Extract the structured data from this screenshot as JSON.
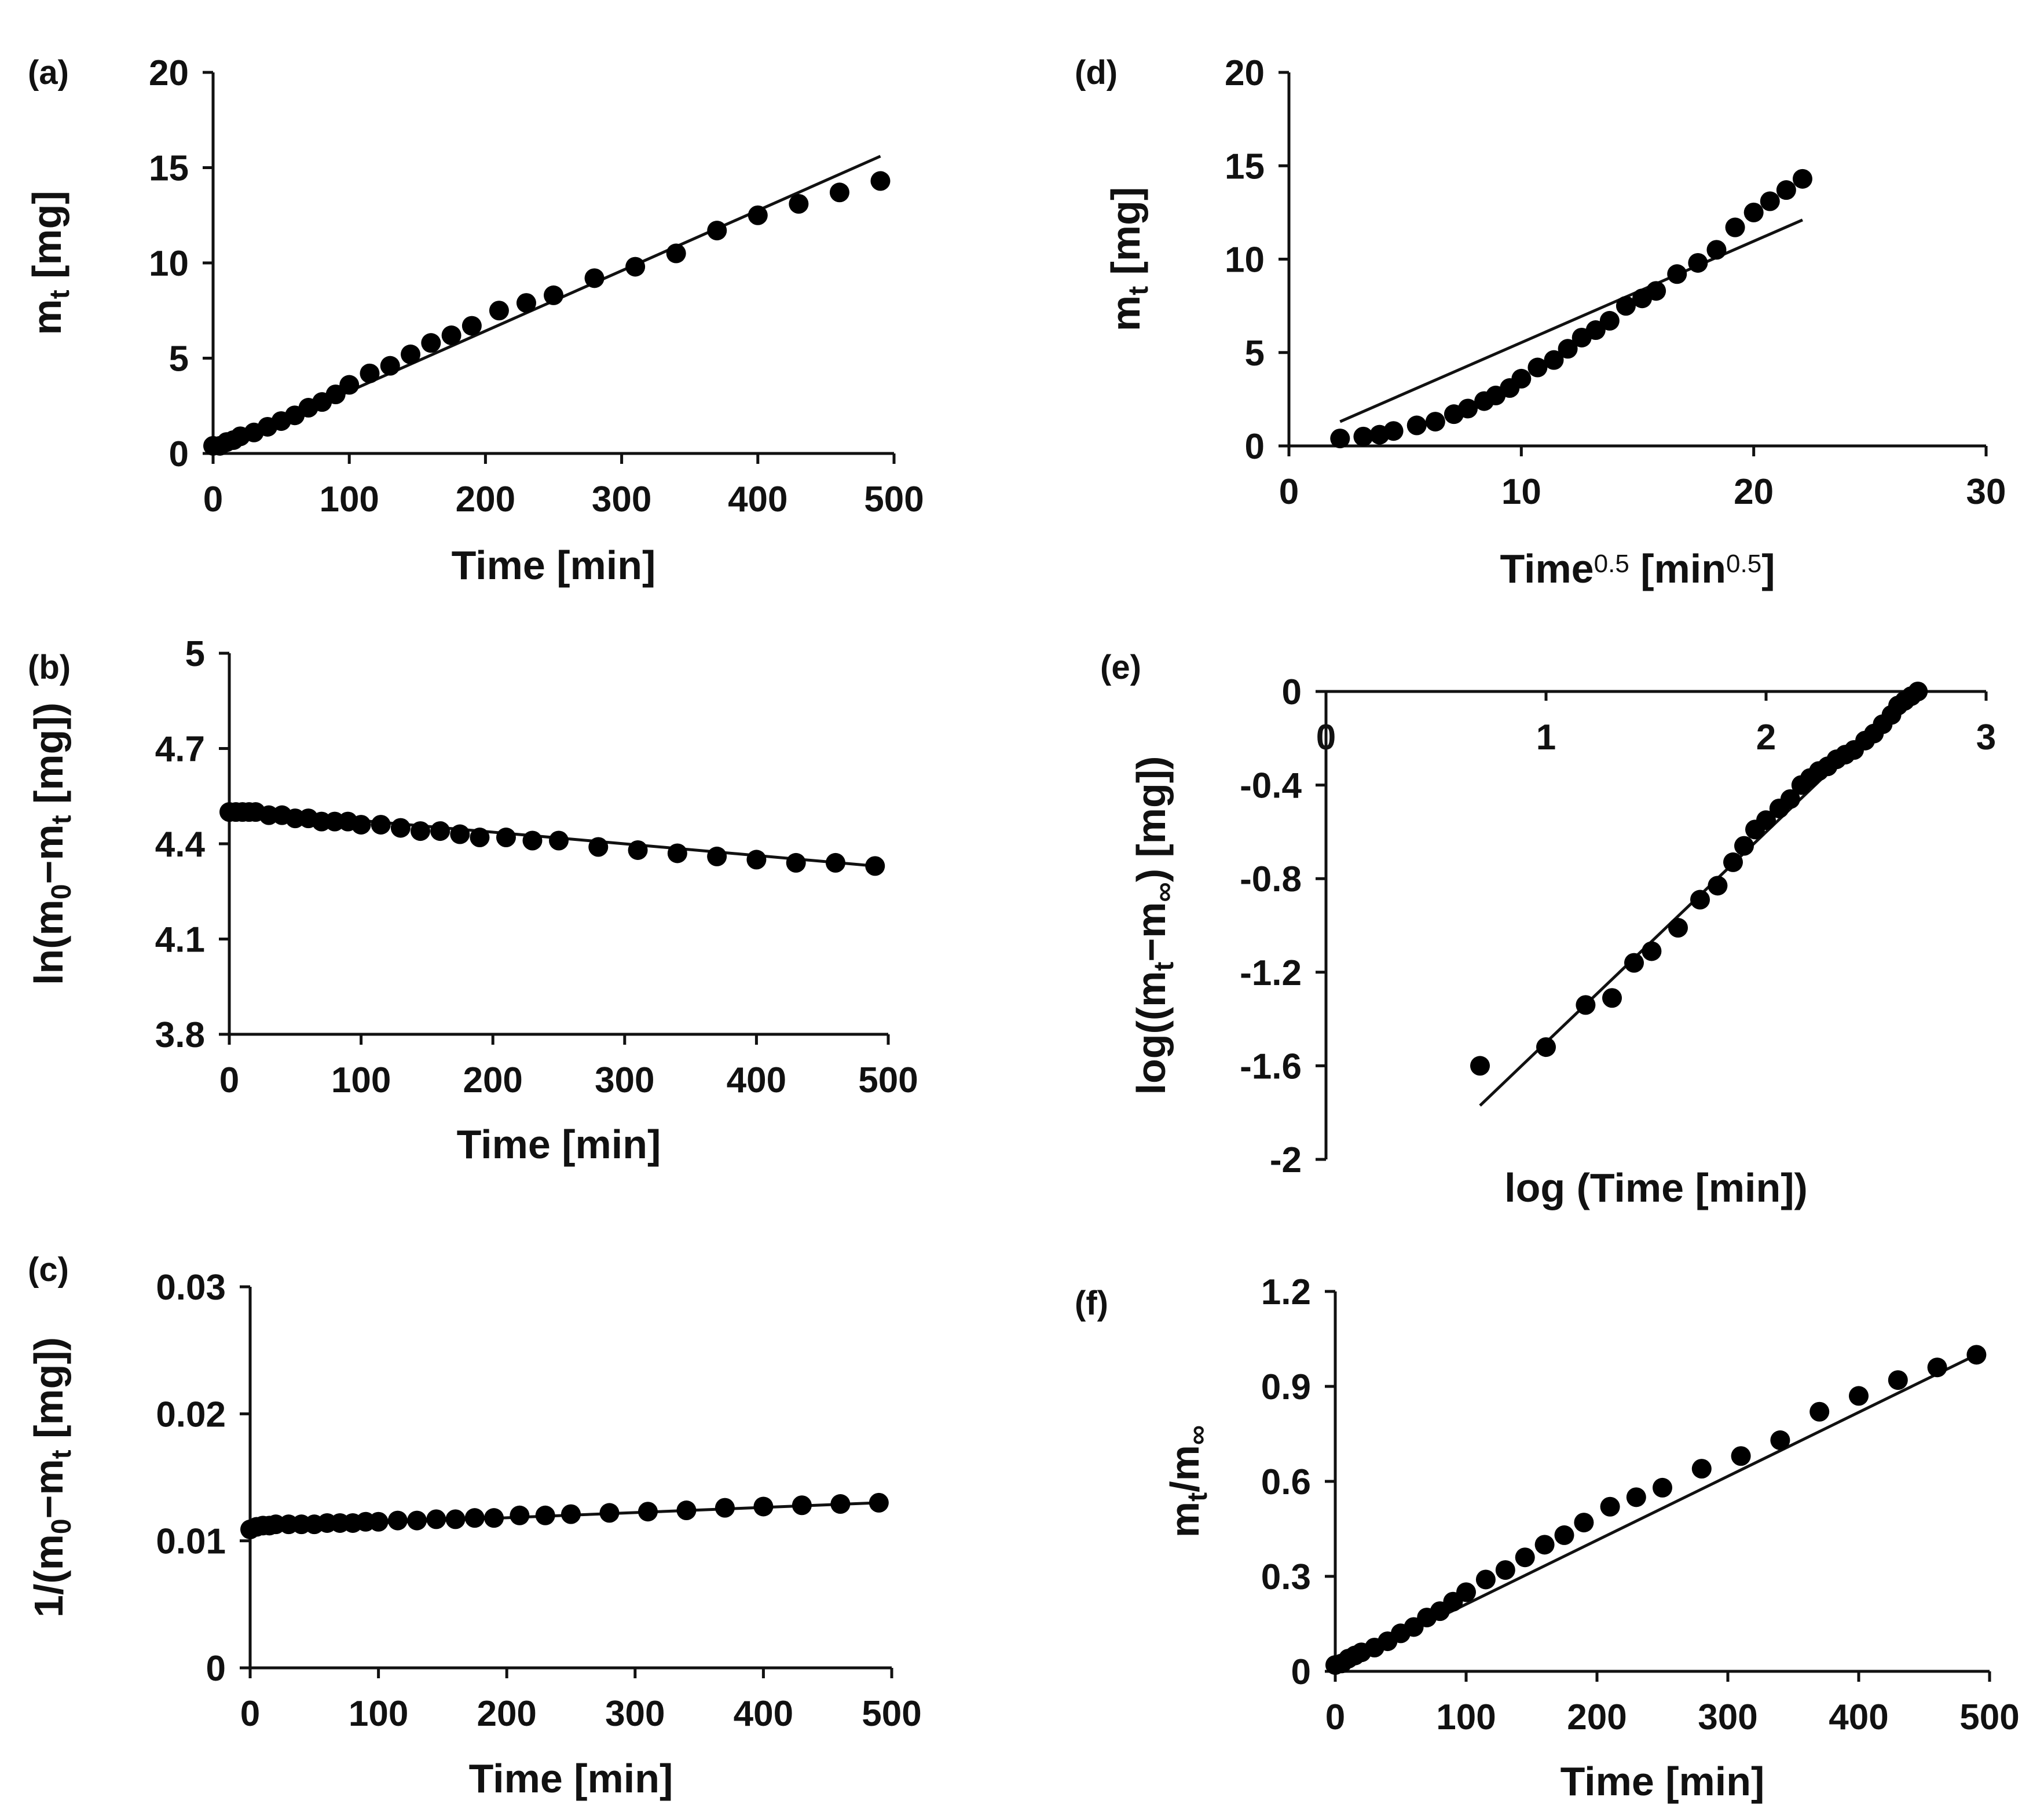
{
  "chart_data": [
    {
      "id": "a",
      "panel_label": "(a)",
      "type": "scatter",
      "xlabel": "Time [min]",
      "ylabel_parts": [
        [
          "m",
          ""
        ],
        [
          "t",
          "sub"
        ],
        [
          " [mg]",
          ""
        ]
      ],
      "xlim": [
        0,
        500
      ],
      "ylim": [
        0,
        20
      ],
      "xticks": [
        0,
        100,
        200,
        300,
        400,
        500
      ],
      "xtick_labels": [
        "0",
        "100",
        "200",
        "300",
        "400",
        "500"
      ],
      "yticks": [
        0,
        5,
        10,
        15,
        20
      ],
      "ytick_labels": [
        "0",
        "5",
        "10",
        "15",
        "20"
      ],
      "x_axis_at": 0,
      "points": [
        [
          0,
          0.4
        ],
        [
          5,
          0.4
        ],
        [
          10,
          0.6
        ],
        [
          15,
          0.7
        ],
        [
          20,
          0.9
        ],
        [
          30,
          1.1
        ],
        [
          40,
          1.4
        ],
        [
          50,
          1.7
        ],
        [
          60,
          2.0
        ],
        [
          70,
          2.4
        ],
        [
          80,
          2.7
        ],
        [
          90,
          3.1
        ],
        [
          100,
          3.6
        ],
        [
          115,
          4.2
        ],
        [
          130,
          4.6
        ],
        [
          145,
          5.2
        ],
        [
          160,
          5.8
        ],
        [
          175,
          6.2
        ],
        [
          190,
          6.7
        ],
        [
          210,
          7.5
        ],
        [
          230,
          7.9
        ],
        [
          250,
          8.3
        ],
        [
          280,
          9.2
        ],
        [
          310,
          9.8
        ],
        [
          340,
          10.5
        ],
        [
          370,
          11.7
        ],
        [
          400,
          12.5
        ],
        [
          430,
          13.1
        ],
        [
          460,
          13.7
        ],
        [
          490,
          14.3
        ]
      ],
      "fit": [
        [
          0,
          0.1
        ],
        [
          490,
          15.6
        ]
      ]
    },
    {
      "id": "b",
      "panel_label": "(b)",
      "type": "scatter",
      "xlabel": "Time [min]",
      "ylabel_parts": [
        [
          "ln(m",
          ""
        ],
        [
          "0",
          "sub"
        ],
        [
          "−m",
          ""
        ],
        [
          "t",
          "sub"
        ],
        [
          " [mg])",
          ""
        ]
      ],
      "xlim": [
        0,
        500
      ],
      "ylim": [
        3.8,
        5
      ],
      "xticks": [
        0,
        100,
        200,
        300,
        400,
        500
      ],
      "xtick_labels": [
        "0",
        "100",
        "200",
        "300",
        "400",
        "500"
      ],
      "yticks": [
        3.8,
        4.1,
        4.4,
        4.7,
        5
      ],
      "ytick_labels": [
        "3.8",
        "4.1",
        "4.4",
        "4.7",
        "5"
      ],
      "x_axis_at": 3.8,
      "points": [
        [
          0,
          4.5
        ],
        [
          5,
          4.5
        ],
        [
          10,
          4.5
        ],
        [
          15,
          4.5
        ],
        [
          20,
          4.5
        ],
        [
          30,
          4.49
        ],
        [
          40,
          4.49
        ],
        [
          50,
          4.48
        ],
        [
          60,
          4.48
        ],
        [
          70,
          4.47
        ],
        [
          80,
          4.47
        ],
        [
          90,
          4.47
        ],
        [
          100,
          4.46
        ],
        [
          115,
          4.46
        ],
        [
          130,
          4.45
        ],
        [
          145,
          4.44
        ],
        [
          160,
          4.44
        ],
        [
          175,
          4.43
        ],
        [
          190,
          4.42
        ],
        [
          210,
          4.42
        ],
        [
          230,
          4.41
        ],
        [
          250,
          4.41
        ],
        [
          280,
          4.39
        ],
        [
          310,
          4.38
        ],
        [
          340,
          4.37
        ],
        [
          370,
          4.36
        ],
        [
          400,
          4.35
        ],
        [
          430,
          4.34
        ],
        [
          460,
          4.34
        ],
        [
          490,
          4.33
        ]
      ],
      "fit": [
        [
          0,
          4.51
        ],
        [
          490,
          4.33
        ]
      ]
    },
    {
      "id": "c",
      "panel_label": "(c)",
      "type": "scatter",
      "xlabel": "Time [min]",
      "ylabel_parts": [
        [
          "1/(m",
          ""
        ],
        [
          "0",
          "sub"
        ],
        [
          "−m",
          ""
        ],
        [
          "t",
          "sub"
        ],
        [
          " [mg])",
          ""
        ]
      ],
      "xlim": [
        0,
        500
      ],
      "ylim": [
        0,
        0.03
      ],
      "xticks": [
        0,
        100,
        200,
        300,
        400,
        500
      ],
      "xtick_labels": [
        "0",
        "100",
        "200",
        "300",
        "400",
        "500"
      ],
      "yticks": [
        0,
        0.01,
        0.02,
        0.03
      ],
      "ytick_labels": [
        "0",
        "0.01",
        "0.02",
        "0.03"
      ],
      "x_axis_at": 0,
      "points": [
        [
          0,
          0.0109
        ],
        [
          5,
          0.0111
        ],
        [
          10,
          0.0112
        ],
        [
          15,
          0.0112
        ],
        [
          20,
          0.0113
        ],
        [
          30,
          0.0113
        ],
        [
          40,
          0.0113
        ],
        [
          50,
          0.0113
        ],
        [
          60,
          0.0114
        ],
        [
          70,
          0.0114
        ],
        [
          80,
          0.0114
        ],
        [
          90,
          0.0115
        ],
        [
          100,
          0.0115
        ],
        [
          115,
          0.0116
        ],
        [
          130,
          0.0116
        ],
        [
          145,
          0.0117
        ],
        [
          160,
          0.0117
        ],
        [
          175,
          0.0118
        ],
        [
          190,
          0.0118
        ],
        [
          210,
          0.012
        ],
        [
          230,
          0.012
        ],
        [
          250,
          0.0121
        ],
        [
          280,
          0.0122
        ],
        [
          310,
          0.0123
        ],
        [
          340,
          0.0124
        ],
        [
          370,
          0.0126
        ],
        [
          400,
          0.0127
        ],
        [
          430,
          0.0128
        ],
        [
          460,
          0.0129
        ],
        [
          490,
          0.013
        ]
      ],
      "fit": [
        [
          0,
          0.011
        ],
        [
          490,
          0.013
        ]
      ]
    },
    {
      "id": "d",
      "panel_label": "(d)",
      "type": "scatter",
      "xlabel_parts": [
        [
          "Time",
          ""
        ],
        [
          "0.5",
          "sup"
        ],
        [
          " [min",
          ""
        ],
        [
          "0.5",
          "sup"
        ],
        [
          "]",
          ""
        ]
      ],
      "ylabel_parts": [
        [
          "m",
          ""
        ],
        [
          "t",
          "sub"
        ],
        [
          " [mg]",
          ""
        ]
      ],
      "xlim": [
        0,
        30
      ],
      "ylim": [
        0,
        20
      ],
      "xticks": [
        0,
        10,
        20,
        30
      ],
      "xtick_labels": [
        "0",
        "10",
        "20",
        "30"
      ],
      "yticks": [
        0,
        5,
        10,
        15,
        20
      ],
      "ytick_labels": [
        "0",
        "5",
        "10",
        "15",
        "20"
      ],
      "x_axis_at": 0,
      "points": [
        [
          2.2,
          0.4
        ],
        [
          3.2,
          0.5
        ],
        [
          3.9,
          0.6
        ],
        [
          4.5,
          0.8
        ],
        [
          5.5,
          1.1
        ],
        [
          6.3,
          1.3
        ],
        [
          7.1,
          1.7
        ],
        [
          7.7,
          2.0
        ],
        [
          8.4,
          2.4
        ],
        [
          8.9,
          2.7
        ],
        [
          9.5,
          3.1
        ],
        [
          10.0,
          3.6
        ],
        [
          10.7,
          4.2
        ],
        [
          11.4,
          4.6
        ],
        [
          12.0,
          5.2
        ],
        [
          12.6,
          5.8
        ],
        [
          13.2,
          6.2
        ],
        [
          13.8,
          6.7
        ],
        [
          14.5,
          7.5
        ],
        [
          15.2,
          7.9
        ],
        [
          15.8,
          8.3
        ],
        [
          16.7,
          9.2
        ],
        [
          17.6,
          9.8
        ],
        [
          18.4,
          10.5
        ],
        [
          19.2,
          11.7
        ],
        [
          20.0,
          12.5
        ],
        [
          20.7,
          13.1
        ],
        [
          21.4,
          13.7
        ],
        [
          22.1,
          14.3
        ]
      ],
      "fit": [
        [
          2.2,
          1.3
        ],
        [
          22.1,
          12.1
        ]
      ]
    },
    {
      "id": "e",
      "panel_label": "(e)",
      "type": "scatter",
      "xlabel": "log (Time [min])",
      "ylabel_parts": [
        [
          "log((m",
          ""
        ],
        [
          "t",
          "sub"
        ],
        [
          "−m",
          ""
        ],
        [
          "∞",
          "sub"
        ],
        [
          ") [mg])",
          ""
        ]
      ],
      "xlim": [
        0,
        3
      ],
      "ylim": [
        -2,
        0
      ],
      "xticks": [
        0,
        1,
        2,
        3
      ],
      "xtick_labels": [
        "0",
        "1",
        "2",
        "3"
      ],
      "yticks": [
        -2,
        -1.6,
        -1.2,
        -0.8,
        -0.4,
        0
      ],
      "ytick_labels": [
        "-2",
        "-1.6",
        "-1.2",
        "-0.8",
        "-0.4",
        "0"
      ],
      "x_axis_at": 0,
      "points": [
        [
          0.7,
          -1.6
        ],
        [
          1.0,
          -1.52
        ],
        [
          1.18,
          -1.34
        ],
        [
          1.3,
          -1.31
        ],
        [
          1.4,
          -1.16
        ],
        [
          1.48,
          -1.11
        ],
        [
          1.6,
          -1.01
        ],
        [
          1.7,
          -0.89
        ],
        [
          1.78,
          -0.83
        ],
        [
          1.85,
          -0.73
        ],
        [
          1.9,
          -0.66
        ],
        [
          1.95,
          -0.59
        ],
        [
          2.0,
          -0.55
        ],
        [
          2.06,
          -0.5
        ],
        [
          2.11,
          -0.46
        ],
        [
          2.16,
          -0.4
        ],
        [
          2.2,
          -0.37
        ],
        [
          2.24,
          -0.34
        ],
        [
          2.28,
          -0.32
        ],
        [
          2.32,
          -0.29
        ],
        [
          2.36,
          -0.27
        ],
        [
          2.4,
          -0.25
        ],
        [
          2.45,
          -0.21
        ],
        [
          2.49,
          -0.18
        ],
        [
          2.53,
          -0.14
        ],
        [
          2.57,
          -0.1
        ],
        [
          2.6,
          -0.06
        ],
        [
          2.63,
          -0.04
        ],
        [
          2.66,
          -0.02
        ],
        [
          2.69,
          0.0
        ]
      ],
      "fit": [
        [
          0.7,
          -1.77
        ],
        [
          2.69,
          0.02
        ]
      ]
    },
    {
      "id": "f",
      "panel_label": "(f)",
      "type": "scatter",
      "xlabel": "Time [min]",
      "ylabel_parts": [
        [
          "m",
          ""
        ],
        [
          "t",
          "sub"
        ],
        [
          "/m",
          ""
        ],
        [
          "∞",
          "sub"
        ]
      ],
      "xlim": [
        0,
        500
      ],
      "ylim": [
        0,
        1.2
      ],
      "xticks": [
        0,
        100,
        200,
        300,
        400,
        500
      ],
      "xtick_labels": [
        "0",
        "100",
        "200",
        "300",
        "400",
        "500"
      ],
      "yticks": [
        0,
        0.3,
        0.6,
        0.9,
        1.2
      ],
      "ytick_labels": [
        "0",
        "0.3",
        "0.6",
        "0.9",
        "1.2"
      ],
      "x_axis_at": 0,
      "points": [
        [
          0,
          0.02
        ],
        [
          5,
          0.025
        ],
        [
          10,
          0.04
        ],
        [
          15,
          0.05
        ],
        [
          20,
          0.06
        ],
        [
          30,
          0.075
        ],
        [
          40,
          0.095
        ],
        [
          50,
          0.12
        ],
        [
          60,
          0.14
        ],
        [
          70,
          0.17
        ],
        [
          80,
          0.19
        ],
        [
          90,
          0.22
        ],
        [
          100,
          0.25
        ],
        [
          115,
          0.29
        ],
        [
          130,
          0.32
        ],
        [
          145,
          0.36
        ],
        [
          160,
          0.4
        ],
        [
          175,
          0.43
        ],
        [
          190,
          0.47
        ],
        [
          210,
          0.52
        ],
        [
          230,
          0.55
        ],
        [
          250,
          0.58
        ],
        [
          280,
          0.64
        ],
        [
          310,
          0.68
        ],
        [
          340,
          0.73
        ],
        [
          370,
          0.82
        ],
        [
          400,
          0.87
        ],
        [
          430,
          0.92
        ],
        [
          460,
          0.96
        ],
        [
          490,
          1.0
        ]
      ],
      "fit": [
        [
          0,
          0.01
        ],
        [
          490,
          1.0
        ]
      ]
    }
  ]
}
